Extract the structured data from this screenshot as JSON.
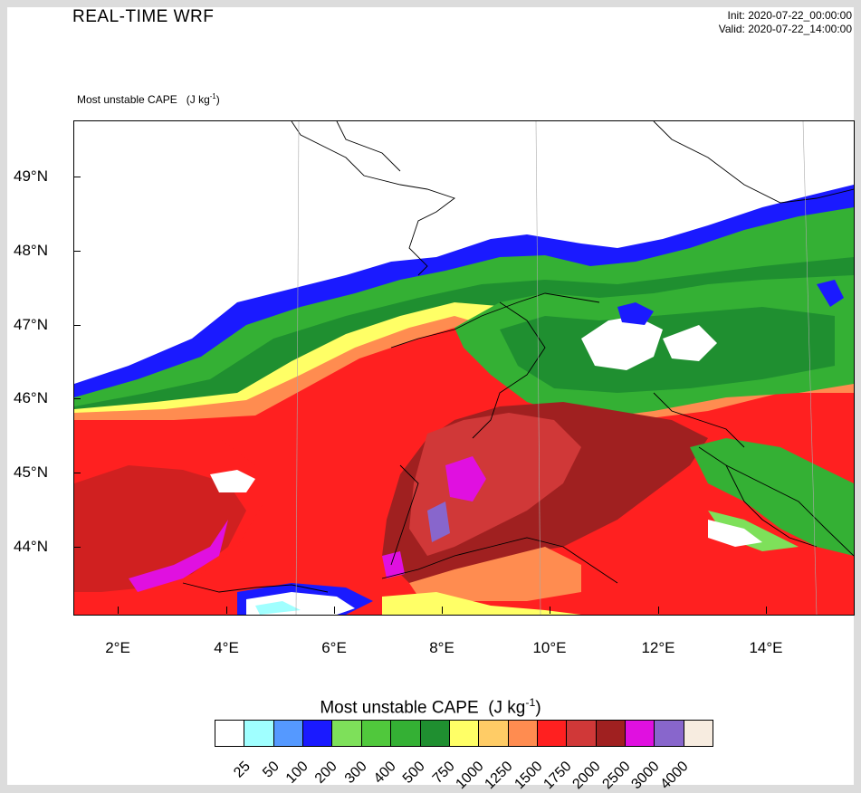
{
  "header": {
    "title": "REAL-TIME WRF",
    "init": "Init: 2020-07-22_00:00:00",
    "valid": "Valid: 2020-07-22_14:00:00"
  },
  "plot": {
    "variable_label": "Most unstable CAPE",
    "units_label": "(J kg",
    "units_exp": "-1",
    "units_close": ")"
  },
  "axes": {
    "lat_labels": [
      "49°N",
      "48°N",
      "47°N",
      "46°N",
      "45°N",
      "44°N"
    ],
    "lon_labels": [
      "2°E",
      "4°E",
      "6°E",
      "8°E",
      "10°E",
      "12°E",
      "14°E"
    ]
  },
  "colorbar": {
    "title": "Most unstable CAPE",
    "units": "(J kg",
    "units_exp": "-1",
    "units_close": ")",
    "levels": [
      "25",
      "50",
      "100",
      "200",
      "300",
      "400",
      "500",
      "750",
      "1000",
      "1250",
      "1500",
      "1750",
      "2000",
      "2500",
      "3000",
      "4000"
    ],
    "colors": [
      "#ffffff",
      "#a0ffff",
      "#5599ff",
      "#1a1aff",
      "#7ee05a",
      "#50c83c",
      "#34b034",
      "#1f8f30",
      "#ffff66",
      "#ffcc66",
      "#ff8c50",
      "#ff2020",
      "#d03838",
      "#a02020",
      "#e010e0",
      "#8866cc",
      "#f7ece0"
    ]
  }
}
